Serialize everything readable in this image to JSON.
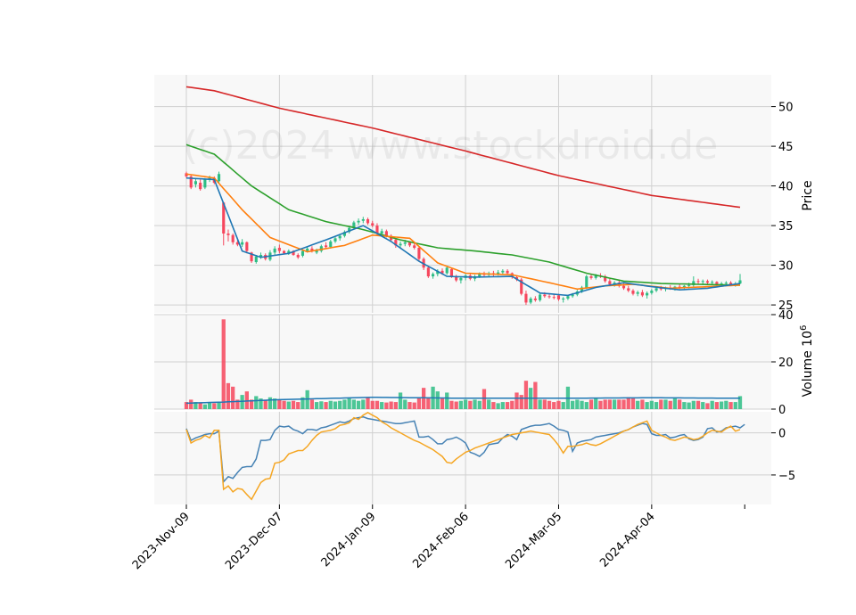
{
  "chart_data": {
    "type": "candlestick",
    "watermark": "(c)2024 www.stockdroid.de",
    "colors": {
      "up": "#2ebd85",
      "down": "#f6465d",
      "panel_bg": "#f8f8f8",
      "grid": "#d0d0d0",
      "ma_blue": "#1f77b4",
      "ma_orange": "#ff7f0e",
      "ma_green": "#2ca02c",
      "ma_red": "#d62728",
      "osc_blue": "#4682b4",
      "osc_orange": "#f5a623",
      "vol_avg": "#1f77b4"
    },
    "x_ticks": [
      "2023-Nov-09",
      "2023-Dec-07",
      "2024-Jan-09",
      "2024-Feb-06",
      "2024-Mar-05",
      "2024-Apr-04"
    ],
    "x_tick_index": [
      0,
      20,
      40,
      60,
      80,
      100
    ],
    "n_bars": 120,
    "price": {
      "ylabel": "Price",
      "ylim": [
        24,
        54
      ],
      "yticks": [
        25,
        30,
        35,
        40,
        45,
        50
      ],
      "ohlc": [
        [
          41.6,
          41.8,
          41.0,
          41.2
        ],
        [
          41.2,
          41.4,
          39.6,
          39.8
        ],
        [
          40.2,
          41.0,
          39.8,
          40.6
        ],
        [
          40.4,
          40.8,
          39.4,
          39.6
        ],
        [
          39.8,
          41.0,
          39.6,
          40.8
        ],
        [
          40.8,
          41.3,
          40.5,
          41.0
        ],
        [
          41.0,
          41.2,
          40.2,
          40.4
        ],
        [
          40.6,
          41.8,
          40.4,
          41.5
        ],
        [
          37.9,
          38.0,
          32.5,
          34.0
        ],
        [
          34.0,
          34.5,
          33.0,
          33.8
        ],
        [
          33.8,
          34.0,
          32.6,
          32.9
        ],
        [
          32.9,
          33.2,
          32.4,
          32.6
        ],
        [
          32.6,
          33.3,
          32.3,
          32.9
        ],
        [
          32.9,
          33.0,
          31.5,
          31.8
        ],
        [
          31.6,
          31.7,
          30.3,
          30.5
        ],
        [
          30.4,
          31.3,
          30.2,
          31.1
        ],
        [
          31.0,
          31.6,
          30.8,
          31.3
        ],
        [
          31.3,
          31.5,
          30.6,
          30.8
        ],
        [
          30.7,
          31.9,
          30.5,
          31.6
        ],
        [
          31.6,
          32.4,
          31.3,
          32.1
        ],
        [
          32.2,
          32.6,
          31.5,
          31.8
        ],
        [
          31.8,
          31.9,
          31.4,
          31.5
        ],
        [
          31.5,
          32.0,
          31.3,
          31.8
        ],
        [
          31.8,
          31.9,
          31.2,
          31.3
        ],
        [
          31.3,
          31.5,
          30.8,
          31.0
        ],
        [
          31.2,
          32.0,
          31.0,
          31.8
        ],
        [
          31.8,
          32.3,
          31.6,
          32.1
        ],
        [
          32.1,
          32.4,
          31.6,
          31.8
        ],
        [
          31.6,
          32.1,
          31.4,
          31.9
        ],
        [
          31.8,
          32.6,
          31.6,
          32.4
        ],
        [
          32.5,
          32.9,
          32.1,
          32.3
        ],
        [
          32.3,
          33.2,
          32.1,
          33.0
        ],
        [
          33.0,
          33.6,
          32.8,
          33.4
        ],
        [
          33.4,
          33.9,
          33.1,
          33.7
        ],
        [
          33.7,
          34.4,
          33.5,
          34.2
        ],
        [
          34.2,
          34.9,
          34.0,
          34.7
        ],
        [
          34.7,
          35.6,
          34.5,
          35.4
        ],
        [
          35.4,
          35.9,
          35.1,
          35.6
        ],
        [
          35.6,
          36.1,
          35.3,
          35.8
        ],
        [
          35.8,
          36.0,
          35.1,
          35.3
        ],
        [
          35.3,
          35.6,
          34.8,
          35.0
        ],
        [
          35.0,
          35.3,
          33.8,
          34.0
        ],
        [
          34.0,
          34.6,
          33.6,
          34.3
        ],
        [
          34.3,
          34.5,
          33.5,
          33.7
        ],
        [
          33.7,
          33.9,
          33.0,
          33.2
        ],
        [
          33.2,
          33.4,
          32.2,
          32.5
        ],
        [
          32.5,
          33.0,
          32.2,
          32.7
        ],
        [
          32.7,
          33.2,
          32.4,
          32.9
        ],
        [
          32.9,
          33.0,
          32.3,
          32.5
        ],
        [
          32.5,
          32.8,
          32.0,
          32.2
        ],
        [
          32.2,
          32.4,
          30.5,
          30.8
        ],
        [
          30.8,
          31.0,
          29.4,
          29.7
        ],
        [
          29.7,
          29.9,
          28.4,
          28.6
        ],
        [
          28.6,
          29.1,
          28.3,
          28.9
        ],
        [
          28.9,
          29.5,
          28.6,
          29.3
        ],
        [
          29.3,
          29.6,
          28.8,
          29.0
        ],
        [
          29.0,
          29.9,
          28.8,
          29.7
        ],
        [
          29.5,
          29.7,
          28.4,
          28.6
        ],
        [
          28.6,
          28.8,
          27.9,
          28.1
        ],
        [
          28.1,
          28.6,
          27.7,
          28.4
        ],
        [
          28.4,
          28.9,
          28.1,
          28.7
        ],
        [
          28.7,
          28.9,
          28.1,
          28.3
        ],
        [
          28.3,
          28.8,
          28.0,
          28.6
        ],
        [
          28.6,
          29.1,
          28.4,
          28.9
        ],
        [
          28.9,
          29.2,
          28.5,
          28.8
        ],
        [
          28.8,
          29.2,
          28.6,
          29.0
        ],
        [
          29.0,
          29.3,
          28.6,
          28.9
        ],
        [
          28.9,
          29.4,
          28.7,
          29.1
        ],
        [
          29.1,
          29.5,
          28.8,
          29.3
        ],
        [
          29.3,
          29.5,
          28.8,
          29.0
        ],
        [
          29.0,
          29.1,
          28.3,
          28.5
        ],
        [
          28.5,
          28.7,
          28.0,
          28.2
        ],
        [
          28.2,
          28.4,
          26.2,
          26.4
        ],
        [
          26.4,
          26.8,
          25.0,
          25.3
        ],
        [
          25.3,
          26.0,
          25.1,
          25.8
        ],
        [
          25.8,
          26.1,
          25.4,
          25.6
        ],
        [
          25.6,
          26.5,
          25.4,
          26.3
        ],
        [
          26.3,
          26.6,
          25.9,
          26.1
        ],
        [
          26.1,
          26.4,
          25.8,
          26.0
        ],
        [
          26.0,
          26.3,
          25.7,
          25.9
        ],
        [
          26.2,
          26.4,
          25.5,
          25.7
        ],
        [
          25.7,
          26.0,
          25.3,
          25.8
        ],
        [
          25.8,
          26.3,
          25.6,
          26.1
        ],
        [
          26.1,
          26.5,
          25.9,
          26.3
        ],
        [
          26.3,
          26.9,
          26.1,
          26.7
        ],
        [
          26.7,
          27.4,
          26.5,
          27.2
        ],
        [
          27.2,
          28.8,
          27.0,
          28.6
        ],
        [
          28.6,
          28.9,
          28.2,
          28.4
        ],
        [
          28.4,
          28.9,
          28.2,
          28.7
        ],
        [
          28.7,
          29.0,
          28.4,
          28.6
        ],
        [
          28.6,
          28.8,
          27.8,
          28.0
        ],
        [
          28.0,
          28.3,
          27.4,
          27.6
        ],
        [
          27.6,
          28.0,
          27.3,
          27.8
        ],
        [
          27.8,
          28.1,
          27.2,
          27.4
        ],
        [
          27.4,
          27.7,
          26.9,
          27.1
        ],
        [
          27.1,
          27.4,
          26.6,
          26.8
        ],
        [
          26.8,
          27.0,
          26.2,
          26.4
        ],
        [
          26.4,
          26.8,
          26.1,
          26.6
        ],
        [
          26.6,
          26.9,
          26.0,
          26.2
        ],
        [
          26.2,
          26.7,
          25.8,
          26.5
        ],
        [
          26.5,
          27.0,
          26.3,
          26.8
        ],
        [
          26.8,
          27.3,
          26.6,
          27.1
        ],
        [
          27.1,
          27.4,
          26.8,
          27.0
        ],
        [
          27.0,
          27.3,
          26.7,
          27.2
        ],
        [
          27.2,
          27.5,
          26.9,
          27.1
        ],
        [
          27.1,
          27.4,
          26.8,
          27.3
        ],
        [
          27.3,
          27.6,
          27.0,
          27.2
        ],
        [
          27.2,
          27.5,
          26.9,
          27.4
        ],
        [
          27.4,
          27.8,
          27.1,
          27.5
        ],
        [
          27.5,
          28.6,
          27.3,
          28.0
        ],
        [
          28.0,
          28.3,
          27.6,
          27.9
        ],
        [
          27.9,
          28.2,
          27.5,
          28.0
        ],
        [
          28.0,
          28.2,
          27.6,
          27.8
        ],
        [
          27.8,
          28.1,
          27.5,
          27.9
        ],
        [
          27.9,
          28.0,
          27.4,
          27.6
        ],
        [
          27.6,
          27.9,
          27.3,
          27.7
        ],
        [
          27.7,
          28.0,
          27.4,
          27.8
        ],
        [
          27.8,
          28.0,
          27.5,
          27.6
        ],
        [
          27.6,
          27.9,
          27.3,
          27.7
        ],
        [
          27.7,
          28.9,
          27.6,
          28.1
        ]
      ],
      "ma_blue": {
        "idx": [
          0,
          6,
          12,
          16,
          22,
          30,
          38,
          44,
          50,
          56,
          62,
          70,
          76,
          82,
          88,
          94,
          100,
          106,
          112,
          119
        ],
        "v": [
          41.0,
          40.8,
          31.8,
          31.0,
          31.5,
          33.2,
          35.0,
          33.0,
          30.5,
          28.6,
          28.5,
          28.6,
          26.5,
          26.2,
          27.2,
          27.8,
          27.3,
          26.9,
          27.1,
          27.7
        ]
      },
      "ma_orange": {
        "idx": [
          0,
          6,
          12,
          18,
          26,
          34,
          40,
          48,
          54,
          60,
          70,
          78,
          84,
          90,
          96,
          104,
          112,
          119
        ],
        "v": [
          41.5,
          41.0,
          37.0,
          33.5,
          31.7,
          32.5,
          33.8,
          33.4,
          30.3,
          29.0,
          28.8,
          27.8,
          27.0,
          27.4,
          27.6,
          27.1,
          27.3,
          27.5
        ]
      },
      "ma_green": {
        "idx": [
          0,
          6,
          14,
          22,
          30,
          38,
          46,
          54,
          62,
          70,
          78,
          86,
          94,
          102,
          110,
          119
        ],
        "v": [
          45.2,
          44.0,
          40.0,
          37.0,
          35.5,
          34.5,
          33.2,
          32.2,
          31.8,
          31.3,
          30.4,
          29.0,
          28.0,
          27.7,
          27.6,
          27.5
        ]
      },
      "ma_red": {
        "idx": [
          0,
          6,
          20,
          40,
          60,
          80,
          100,
          119
        ],
        "v": [
          52.5,
          52.0,
          49.8,
          47.3,
          44.4,
          41.3,
          38.8,
          37.3
        ]
      }
    },
    "volume": {
      "ylabel": "Volume  10^6",
      "ylim": [
        0,
        40
      ],
      "yticks": [
        0,
        20,
        40
      ],
      "values": [
        3,
        4,
        3,
        2.5,
        2,
        3,
        2.5,
        3,
        38,
        11,
        9.5,
        4,
        6,
        7.5,
        4,
        5.5,
        4.5,
        4,
        5,
        4.5,
        4,
        3.5,
        3.2,
        3.5,
        3,
        5,
        8,
        4,
        3,
        3.3,
        3,
        3.5,
        3.2,
        3.5,
        4,
        4.5,
        4,
        3.5,
        4,
        5,
        3.5,
        3.5,
        3,
        2.8,
        3.2,
        3,
        7,
        4,
        3,
        2.8,
        5,
        9,
        5,
        9.5,
        7.5,
        4.5,
        7,
        3.5,
        3.2,
        3.5,
        4,
        3.5,
        4,
        3.5,
        8.5,
        4,
        3,
        2.5,
        3,
        3,
        3.5,
        7,
        6,
        12,
        9,
        11.5,
        4,
        4,
        3.5,
        3,
        3.5,
        3,
        9.5,
        3.5,
        4,
        3.5,
        3,
        4,
        4.5,
        3.5,
        4,
        4,
        4,
        4,
        4,
        5,
        4.5,
        3.5,
        4,
        3,
        3.5,
        3,
        4,
        4,
        3.5,
        4.5,
        4,
        3,
        2.8,
        3.5,
        3.5,
        3,
        2.5,
        3.5,
        3,
        3.2,
        3.5,
        3,
        3,
        5.5
      ],
      "avg": {
        "idx": [
          0,
          8,
          20,
          40,
          60,
          80,
          100,
          119
        ],
        "v": [
          2.5,
          3.0,
          4.0,
          5.0,
          4.6,
          4.6,
          4.8,
          4.6
        ]
      }
    },
    "oscillator": {
      "ylim": [
        -8.5,
        2.5
      ],
      "yticks": [
        -5,
        0
      ],
      "blue": [
        0.5,
        -0.9,
        -0.6,
        -0.4,
        -0.2,
        -0.1,
        -0.1,
        0.2,
        -5.8,
        -5.2,
        -5.4,
        -4.7,
        -4.1,
        -4.0,
        -4.0,
        -3.1,
        -0.9,
        -0.9,
        -0.8,
        0.3,
        0.8,
        0.7,
        0.8,
        0.4,
        0.2,
        -0.1,
        0.4,
        0.4,
        0.3,
        0.6,
        0.7,
        0.9,
        1.1,
        1.3,
        1.2,
        1.4,
        1.7,
        1.8,
        1.9,
        1.7,
        1.6,
        1.5,
        1.4,
        1.3,
        1.2,
        1.1,
        1.1,
        1.2,
        1.3,
        1.4,
        -0.5,
        -0.5,
        -0.4,
        -0.8,
        -1.3,
        -1.3,
        -0.8,
        -0.7,
        -0.5,
        -0.8,
        -1.2,
        -2.3,
        -2.5,
        -2.8,
        -2.3,
        -1.4,
        -1.3,
        -1.2,
        -0.6,
        -0.2,
        -0.4,
        -0.8,
        0.4,
        0.6,
        0.8,
        0.9,
        0.9,
        1.0,
        1.1,
        0.8,
        0.4,
        0.3,
        0.1,
        -2.2,
        -1.2,
        -1.0,
        -0.9,
        -0.8,
        -0.5,
        -0.4,
        -0.3,
        -0.2,
        -0.1,
        0.0,
        0.2,
        0.4,
        0.7,
        0.9,
        1.1,
        1.0,
        -0.1,
        -0.3,
        -0.3,
        -0.2,
        -0.6,
        -0.5,
        -0.3,
        -0.2,
        -0.7,
        -0.9,
        -0.8,
        -0.5,
        0.5,
        0.6,
        0.1,
        0.2,
        0.6,
        0.7,
        0.8,
        0.6,
        1.0
      ],
      "orange": [
        0.4,
        -1.2,
        -0.9,
        -0.7,
        -0.3,
        -0.6,
        0.3,
        0.3,
        -6.7,
        -6.3,
        -7.0,
        -6.6,
        -6.7,
        -7.3,
        -7.9,
        -6.9,
        -5.9,
        -5.5,
        -5.4,
        -3.6,
        -3.5,
        -3.2,
        -2.5,
        -2.3,
        -2.1,
        -2.1,
        -1.6,
        -0.9,
        -0.3,
        0.1,
        0.2,
        0.3,
        0.5,
        0.9,
        1.0,
        1.2,
        1.8,
        1.6,
        2.1,
        2.4,
        2.1,
        1.8,
        1.3,
        1.0,
        0.6,
        0.3,
        0.0,
        -0.3,
        -0.6,
        -0.9,
        -1.1,
        -1.4,
        -1.7,
        -2.0,
        -2.4,
        -2.8,
        -3.5,
        -3.6,
        -3.1,
        -2.7,
        -2.3,
        -2.1,
        -1.8,
        -1.6,
        -1.4,
        -1.2,
        -1.0,
        -0.8,
        -0.6,
        -0.4,
        -0.2,
        -0.1,
        0.0,
        0.1,
        0.2,
        0.1,
        0.0,
        -0.1,
        -0.2,
        -0.8,
        -1.5,
        -2.4,
        -1.6,
        -1.6,
        -1.5,
        -1.4,
        -1.2,
        -1.4,
        -1.5,
        -1.3,
        -1.0,
        -0.7,
        -0.4,
        -0.1,
        0.2,
        0.4,
        0.7,
        1.0,
        1.2,
        1.4,
        0.3,
        0.0,
        -0.3,
        -0.5,
        -0.8,
        -0.9,
        -0.7,
        -0.5,
        -0.6,
        -0.8,
        -0.7,
        -0.4,
        0.0,
        0.3,
        0.2,
        0.1,
        0.5,
        0.8,
        0.2,
        0.4
      ]
    }
  }
}
